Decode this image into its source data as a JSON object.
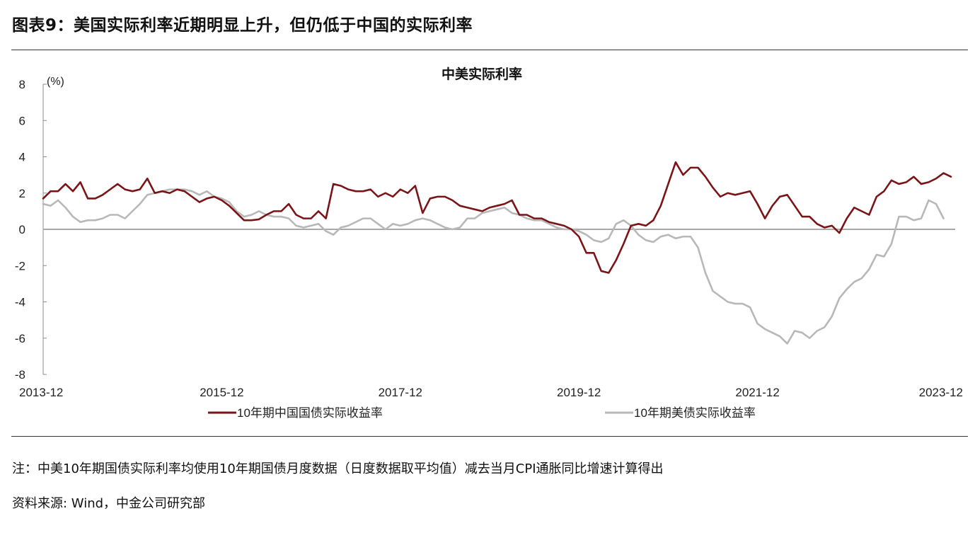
{
  "figure_title": "图表9：美国实际利率近期明显上升，但仍低于中国的实际利率",
  "note": "注：中美10年期国债实际利率均使用10年期国债月度数据（日度数据取平均值）减去当月CPI通胀同比增速计算得出",
  "source": "资料来源: Wind，中金公司研究部",
  "chart_data": {
    "type": "line",
    "title": "中美实际利率",
    "ylabel": "(%)",
    "ylim": [
      -8,
      8
    ],
    "yticks": [
      8,
      6,
      4,
      2,
      0,
      -2,
      -4,
      -6,
      -8
    ],
    "xlim": [
      "2013-12",
      "2023-12"
    ],
    "xticks": [
      "2013-12",
      "2015-12",
      "2017-12",
      "2019-12",
      "2021-12",
      "2023-12"
    ],
    "legend_position": "bottom",
    "series": [
      {
        "name": "10年期中国国债实际收益率",
        "color": "#7b1416",
        "start": "2013-12",
        "values": [
          1.7,
          2.1,
          2.1,
          2.5,
          2.1,
          2.6,
          1.7,
          1.7,
          1.9,
          2.2,
          2.5,
          2.2,
          2.1,
          2.2,
          2.8,
          2.0,
          2.1,
          2.0,
          2.2,
          2.1,
          1.8,
          1.5,
          1.7,
          1.8,
          1.6,
          1.3,
          0.9,
          0.5,
          0.5,
          0.55,
          0.8,
          1.0,
          1.0,
          1.4,
          0.8,
          0.6,
          0.6,
          1.0,
          0.6,
          2.5,
          2.4,
          2.2,
          2.1,
          2.1,
          2.2,
          1.8,
          2.0,
          1.8,
          2.2,
          2.0,
          2.4,
          0.9,
          1.7,
          1.8,
          1.8,
          1.6,
          1.3,
          1.2,
          1.1,
          1.0,
          1.2,
          1.3,
          1.4,
          1.6,
          0.8,
          0.8,
          0.6,
          0.6,
          0.4,
          0.3,
          0.2,
          0.0,
          -0.4,
          -1.3,
          -1.3,
          -2.3,
          -2.4,
          -1.7,
          -0.8,
          0.2,
          0.3,
          0.2,
          0.5,
          1.3,
          2.5,
          3.7,
          3.0,
          3.4,
          3.4,
          2.9,
          2.3,
          1.8,
          2.0,
          1.9,
          2.0,
          2.1,
          1.4,
          0.6,
          1.3,
          1.8,
          1.9,
          1.3,
          0.7,
          0.7,
          0.3,
          0.1,
          0.2,
          -0.2,
          0.6,
          1.2,
          1.0,
          0.8,
          1.8,
          2.1,
          2.7,
          2.5,
          2.6,
          2.9,
          2.5,
          2.6,
          2.8,
          3.1,
          2.9
        ]
      },
      {
        "name": "10年期美债实际收益率",
        "color": "#b8b8b8",
        "start": "2013-12",
        "values": [
          1.4,
          1.3,
          1.6,
          1.2,
          0.7,
          0.4,
          0.5,
          0.5,
          0.6,
          0.8,
          0.8,
          0.6,
          1.0,
          1.4,
          1.9,
          2.0,
          2.1,
          2.2,
          2.2,
          2.2,
          2.1,
          1.9,
          2.1,
          1.8,
          1.7,
          1.5,
          1.0,
          0.7,
          0.8,
          1.0,
          0.8,
          0.7,
          0.7,
          0.6,
          0.2,
          0.1,
          0.2,
          0.3,
          -0.1,
          -0.3,
          0.1,
          0.2,
          0.4,
          0.6,
          0.6,
          0.3,
          0.0,
          0.3,
          0.2,
          0.3,
          0.5,
          0.6,
          0.5,
          0.3,
          0.1,
          0.0,
          0.1,
          0.6,
          0.6,
          0.9,
          1.0,
          1.1,
          1.2,
          0.9,
          0.8,
          0.6,
          0.5,
          0.5,
          0.3,
          0.1,
          0.0,
          0.0,
          -0.1,
          -0.3,
          -0.6,
          -0.7,
          -0.5,
          0.3,
          0.5,
          0.2,
          -0.3,
          -0.6,
          -0.7,
          -0.4,
          -0.3,
          -0.5,
          -0.4,
          -0.4,
          -1.0,
          -2.4,
          -3.4,
          -3.7,
          -4.0,
          -4.1,
          -4.1,
          -4.3,
          -5.2,
          -5.5,
          -5.7,
          -5.9,
          -6.3,
          -5.6,
          -5.7,
          -6.0,
          -5.6,
          -5.4,
          -4.8,
          -3.8,
          -3.3,
          -2.9,
          -2.7,
          -2.2,
          -1.4,
          -1.5,
          -0.8,
          0.7,
          0.7,
          0.5,
          0.6,
          1.6,
          1.4,
          0.6
        ]
      }
    ]
  }
}
